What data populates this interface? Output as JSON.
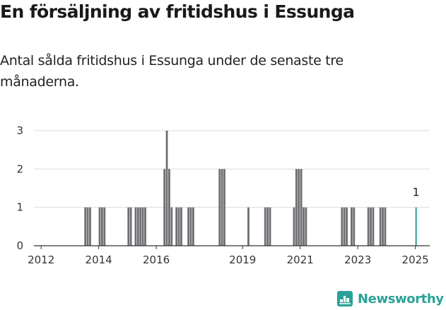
{
  "title": "En försäljning av fritidshus i Essunga",
  "subtitle": "Antal sålda fritidshus i Essunga under de senaste tre månaderna.",
  "brand": {
    "name": "Newsworthy",
    "icon": "newsworthy-logo-icon",
    "color": "#2aa198"
  },
  "colors": {
    "bar": "#6e6e73",
    "highlight": "#2a9d8f",
    "grid": "#dcdcdc",
    "axis": "#333333"
  },
  "chart_data": {
    "type": "bar",
    "title": "",
    "xlabel": "",
    "ylabel": "",
    "ylim": [
      0,
      3
    ],
    "yticks": [
      "0",
      "1",
      "2",
      "3"
    ],
    "xlim": [
      "2011-10",
      "2025-07"
    ],
    "xticks": [
      "2012",
      "2014",
      "2016",
      "2019",
      "2021",
      "2023",
      "2025"
    ],
    "grid": true,
    "annotation": {
      "month": "2025-01",
      "label": "1"
    },
    "series": [
      {
        "months": [
          "2013-07",
          "2013-08",
          "2013-09",
          "2014-01",
          "2014-02",
          "2014-03",
          "2015-01",
          "2015-02",
          "2015-04",
          "2015-05",
          "2015-06",
          "2015-07",
          "2015-08",
          "2016-04",
          "2016-05",
          "2016-06",
          "2016-07",
          "2016-09",
          "2016-10",
          "2016-11",
          "2017-02",
          "2017-03",
          "2017-04",
          "2018-03",
          "2018-04",
          "2018-05",
          "2019-03",
          "2019-10",
          "2019-11",
          "2019-12",
          "2020-10",
          "2020-11",
          "2020-12",
          "2021-01",
          "2021-02",
          "2021-03",
          "2022-06",
          "2022-07",
          "2022-08",
          "2022-10",
          "2022-11",
          "2023-05",
          "2023-06",
          "2023-07",
          "2023-10",
          "2023-11",
          "2023-12",
          "2025-01"
        ],
        "values": [
          1,
          1,
          1,
          1,
          1,
          1,
          1,
          1,
          1,
          1,
          1,
          1,
          1,
          2,
          3,
          2,
          1,
          1,
          1,
          1,
          1,
          1,
          1,
          2,
          2,
          2,
          1,
          1,
          1,
          1,
          1,
          2,
          2,
          2,
          1,
          1,
          1,
          1,
          1,
          1,
          1,
          1,
          1,
          1,
          1,
          1,
          1,
          1
        ],
        "highlight": [
          "2025-01"
        ]
      }
    ]
  }
}
